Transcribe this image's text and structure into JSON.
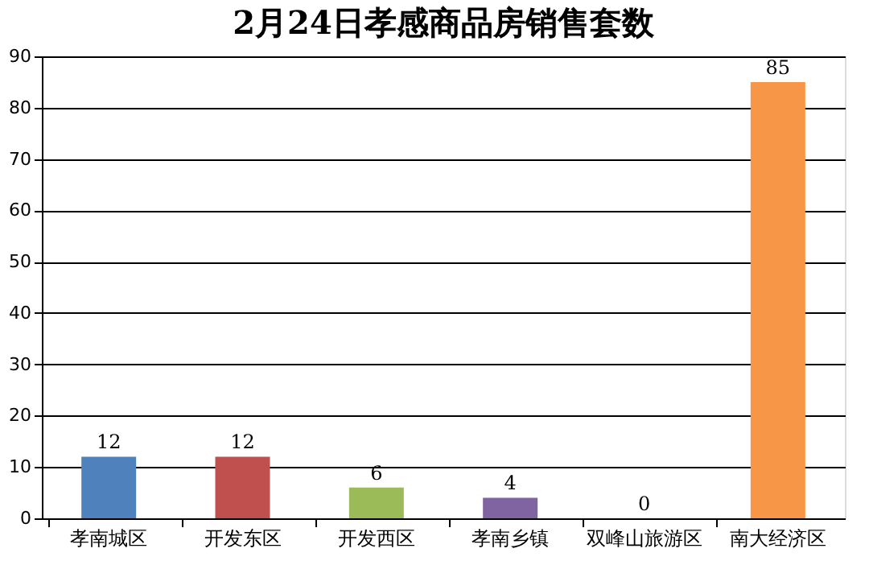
{
  "chart_data": {
    "type": "bar",
    "title": "2月24日孝感商品房销售套数",
    "categories": [
      "孝南城区",
      "开发东区",
      "开发西区",
      "孝南乡镇",
      "双峰山旅游区",
      "南大经济区"
    ],
    "values": [
      12,
      12,
      6,
      4,
      0,
      85
    ],
    "colors": [
      "#4f81bd",
      "#c0504d",
      "#9bbb59",
      "#8064a2",
      "#4bacc6",
      "#f79646"
    ],
    "ylim": [
      0,
      90
    ],
    "yticks": [
      0,
      10,
      20,
      30,
      40,
      50,
      60,
      70,
      80,
      90
    ],
    "grid": "y",
    "data_labels": true,
    "legend": false
  }
}
